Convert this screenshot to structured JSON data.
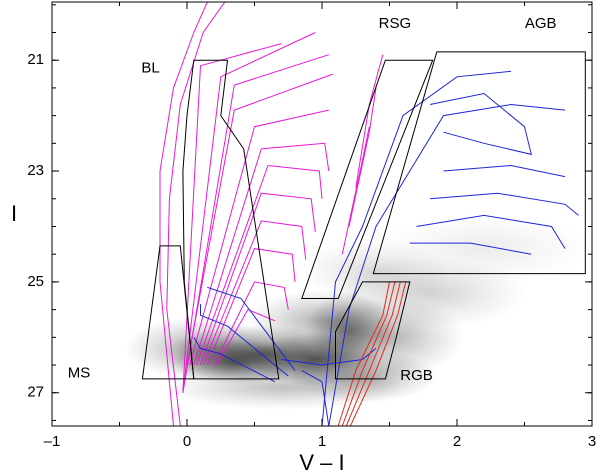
{
  "chart_data": {
    "type": "scatter",
    "title": "",
    "xlabel": "V – I",
    "ylabel": "I",
    "xlim": [
      -1,
      3
    ],
    "ylim": [
      27.6,
      19.95
    ],
    "y_inverted": true,
    "grid": false,
    "x_ticks": [
      -1,
      0,
      1,
      2,
      3
    ],
    "x_tick_labels": [
      "–1",
      "0",
      "1",
      "2",
      "3"
    ],
    "y_ticks": [
      21,
      23,
      25,
      27
    ],
    "y_tick_labels": [
      "21",
      "23",
      "25",
      "27"
    ],
    "density": {
      "description": "grey-scale stellar density (Hess diagram)",
      "color": "#000000",
      "blobs": [
        {
          "x": 0.55,
          "y": 26.3,
          "sx": 0.45,
          "sy": 0.32,
          "a": 0.55
        },
        {
          "x": 0.95,
          "y": 26.4,
          "sx": 0.3,
          "sy": 0.3,
          "a": 0.6
        },
        {
          "x": 0.35,
          "y": 26.45,
          "sx": 0.3,
          "sy": 0.25,
          "a": 0.5
        },
        {
          "x": 1.2,
          "y": 25.9,
          "sx": 0.2,
          "sy": 0.45,
          "a": 0.45
        },
        {
          "x": 1.0,
          "y": 25.7,
          "sx": 0.35,
          "sy": 0.35,
          "a": 0.3
        },
        {
          "x": 0.1,
          "y": 26.2,
          "sx": 0.35,
          "sy": 0.35,
          "a": 0.35
        },
        {
          "x": 1.5,
          "y": 26.0,
          "sx": 0.35,
          "sy": 0.45,
          "a": 0.3
        },
        {
          "x": 1.8,
          "y": 25.2,
          "sx": 0.45,
          "sy": 0.4,
          "a": 0.18
        },
        {
          "x": 1.4,
          "y": 24.8,
          "sx": 0.35,
          "sy": 0.35,
          "a": 0.14
        },
        {
          "x": 2.2,
          "y": 24.4,
          "sx": 0.5,
          "sy": 0.4,
          "a": 0.08
        },
        {
          "x": 0.7,
          "y": 26.9,
          "sx": 0.55,
          "sy": 0.25,
          "a": 0.25
        },
        {
          "x": 1.3,
          "y": 26.7,
          "sx": 0.35,
          "sy": 0.3,
          "a": 0.35
        }
      ]
    },
    "regions": [
      {
        "name": "BL",
        "label_x": -0.27,
        "label_y": 21.15,
        "polygon": [
          [
            0.05,
            21.0
          ],
          [
            0.3,
            21.0
          ],
          [
            0.25,
            22.0
          ],
          [
            0.42,
            22.6
          ],
          [
            0.68,
            26.75
          ],
          [
            0.05,
            26.75
          ],
          [
            -0.02,
            25.0
          ],
          [
            -0.03,
            23.0
          ],
          [
            0.0,
            22.0
          ]
        ]
      },
      {
        "name": "MS",
        "label_x": -0.8,
        "label_y": 26.65,
        "polygon": [
          [
            -0.2,
            24.35
          ],
          [
            -0.05,
            24.35
          ],
          [
            0.05,
            26.75
          ],
          [
            -0.33,
            26.75
          ],
          [
            -0.2,
            24.35
          ]
        ]
      },
      {
        "name": "RSG",
        "label_x": 1.54,
        "label_y": 20.35,
        "polygon": [
          [
            0.85,
            25.3
          ],
          [
            1.12,
            25.3
          ],
          [
            1.82,
            21.0
          ],
          [
            1.47,
            21.0
          ],
          [
            0.85,
            25.3
          ]
        ]
      },
      {
        "name": "AGB",
        "label_x": 2.62,
        "label_y": 20.35,
        "polygon": [
          [
            1.85,
            20.85
          ],
          [
            2.95,
            20.85
          ],
          [
            2.95,
            24.85
          ],
          [
            1.38,
            24.85
          ],
          [
            1.85,
            20.85
          ]
        ]
      },
      {
        "name": "RGB",
        "label_x": 1.7,
        "label_y": 26.7,
        "polygon": [
          [
            1.1,
            26.75
          ],
          [
            1.1,
            25.9
          ],
          [
            1.3,
            25.0
          ],
          [
            1.65,
            25.0
          ],
          [
            1.55,
            26.0
          ],
          [
            1.47,
            26.75
          ],
          [
            1.1,
            26.75
          ]
        ]
      }
    ],
    "series": [
      {
        "color": "#e81ad6",
        "points": [
          [
            -0.1,
            27.6
          ],
          [
            -0.2,
            25.0
          ],
          [
            -0.2,
            23.0
          ],
          [
            -0.1,
            21.5
          ],
          [
            0.05,
            20.5
          ],
          [
            0.15,
            19.95
          ]
        ]
      },
      {
        "color": "#e81ad6",
        "points": [
          [
            -0.05,
            27.6
          ],
          [
            -0.15,
            25.5
          ],
          [
            -0.13,
            23.5
          ],
          [
            -0.05,
            21.8
          ],
          [
            0.12,
            20.5
          ],
          [
            0.28,
            19.95
          ]
        ]
      },
      {
        "color": "#e81ad6",
        "points": [
          [
            -0.03,
            27.0
          ],
          [
            0.1,
            21.1
          ],
          [
            0.7,
            20.7
          ]
        ]
      },
      {
        "color": "#e81ad6",
        "points": [
          [
            -0.03,
            27.0
          ],
          [
            0.25,
            21.3
          ],
          [
            0.95,
            20.5
          ]
        ]
      },
      {
        "color": "#e81ad6",
        "points": [
          [
            -0.03,
            27.0
          ],
          [
            0.35,
            21.45
          ],
          [
            1.05,
            20.9
          ]
        ]
      },
      {
        "color": "#e81ad6",
        "points": [
          [
            0.0,
            26.5
          ],
          [
            0.35,
            21.9
          ],
          [
            1.08,
            21.25
          ]
        ]
      },
      {
        "color": "#e81ad6",
        "points": [
          [
            0.02,
            26.5
          ],
          [
            0.5,
            22.2
          ],
          [
            1.05,
            21.9
          ]
        ]
      },
      {
        "color": "#e81ad6",
        "points": [
          [
            0.05,
            26.5
          ],
          [
            0.55,
            22.6
          ],
          [
            1.02,
            22.5
          ],
          [
            1.05,
            23.0
          ]
        ]
      },
      {
        "color": "#e81ad6",
        "points": [
          [
            0.07,
            26.5
          ],
          [
            0.6,
            22.9
          ],
          [
            0.98,
            23.0
          ],
          [
            1.0,
            23.5
          ]
        ]
      },
      {
        "color": "#e81ad6",
        "points": [
          [
            0.1,
            26.5
          ],
          [
            0.55,
            23.4
          ],
          [
            0.92,
            23.5
          ],
          [
            0.95,
            24.1
          ]
        ]
      },
      {
        "color": "#e81ad6",
        "points": [
          [
            0.12,
            26.5
          ],
          [
            0.55,
            23.9
          ],
          [
            0.85,
            24.0
          ],
          [
            0.88,
            24.6
          ]
        ]
      },
      {
        "color": "#e81ad6",
        "points": [
          [
            0.15,
            26.5
          ],
          [
            0.5,
            24.4
          ],
          [
            0.78,
            24.5
          ],
          [
            0.8,
            25.0
          ]
        ]
      },
      {
        "color": "#e81ad6",
        "points": [
          [
            0.2,
            26.5
          ],
          [
            0.5,
            25.0
          ],
          [
            0.72,
            25.1
          ],
          [
            0.75,
            25.5
          ]
        ]
      },
      {
        "color": "#e81ad6",
        "points": [
          [
            0.22,
            26.5
          ],
          [
            0.45,
            25.5
          ],
          [
            0.65,
            25.7
          ]
        ]
      },
      {
        "color": "#e81ad6",
        "points": [
          [
            1.25,
            23.3
          ],
          [
            1.35,
            21.8
          ],
          [
            1.45,
            20.9
          ]
        ]
      },
      {
        "color": "#e81ad6",
        "points": [
          [
            1.2,
            24.0
          ],
          [
            1.35,
            22.3
          ],
          [
            1.4,
            21.5
          ]
        ]
      },
      {
        "color": "#e81ad6",
        "points": [
          [
            1.15,
            24.5
          ],
          [
            1.3,
            22.8
          ],
          [
            1.35,
            22.2
          ]
        ]
      },
      {
        "color": "#1c27d8",
        "points": [
          [
            1.0,
            27.6
          ],
          [
            1.1,
            25.0
          ],
          [
            1.3,
            24.0
          ],
          [
            1.6,
            22.0
          ],
          [
            2.0,
            21.3
          ],
          [
            2.4,
            21.2
          ]
        ]
      },
      {
        "color": "#1c27d8",
        "points": [
          [
            1.05,
            27.6
          ],
          [
            1.2,
            25.5
          ],
          [
            1.4,
            24.0
          ],
          [
            1.9,
            22.0
          ],
          [
            2.4,
            21.8
          ],
          [
            2.8,
            21.9
          ]
        ]
      },
      {
        "color": "#1c27d8",
        "points": [
          [
            1.8,
            21.8
          ],
          [
            2.2,
            21.6
          ],
          [
            2.5,
            22.2
          ],
          [
            2.55,
            22.7
          ],
          [
            2.2,
            22.5
          ],
          [
            1.9,
            22.3
          ]
        ]
      },
      {
        "color": "#1c27d8",
        "points": [
          [
            1.9,
            23.0
          ],
          [
            2.4,
            22.9
          ],
          [
            2.8,
            23.1
          ]
        ]
      },
      {
        "color": "#1c27d8",
        "points": [
          [
            1.8,
            23.5
          ],
          [
            2.3,
            23.4
          ],
          [
            2.8,
            23.6
          ],
          [
            2.9,
            23.8
          ]
        ]
      },
      {
        "color": "#1c27d8",
        "points": [
          [
            1.7,
            24.0
          ],
          [
            2.2,
            23.8
          ],
          [
            2.7,
            24.0
          ],
          [
            2.8,
            24.4
          ]
        ]
      },
      {
        "color": "#1c27d8",
        "points": [
          [
            1.65,
            24.3
          ],
          [
            2.1,
            24.3
          ],
          [
            2.55,
            24.5
          ]
        ]
      },
      {
        "color": "#1c27d8",
        "points": [
          [
            0.65,
            26.8
          ],
          [
            0.25,
            26.3
          ],
          [
            0.1,
            26.2
          ],
          [
            0.05,
            26.0
          ]
        ]
      },
      {
        "color": "#1c27d8",
        "points": [
          [
            0.75,
            26.7
          ],
          [
            0.3,
            25.8
          ],
          [
            0.1,
            25.6
          ],
          [
            0.1,
            25.4
          ]
        ]
      },
      {
        "color": "#1c27d8",
        "points": [
          [
            0.8,
            26.6
          ],
          [
            0.4,
            25.3
          ],
          [
            0.15,
            25.1
          ]
        ]
      },
      {
        "color": "#1c27d8",
        "points": [
          [
            0.85,
            26.6
          ],
          [
            1.0,
            26.8
          ],
          [
            1.05,
            27.6
          ]
        ]
      },
      {
        "color": "#1c27d8",
        "points": [
          [
            0.7,
            26.4
          ],
          [
            1.0,
            26.5
          ],
          [
            1.3,
            26.4
          ],
          [
            1.4,
            26.2
          ]
        ]
      },
      {
        "color": "#e3291b",
        "points": [
          [
            1.12,
            27.6
          ],
          [
            1.25,
            26.6
          ],
          [
            1.45,
            25.6
          ],
          [
            1.5,
            25.0
          ]
        ]
      },
      {
        "color": "#e3291b",
        "points": [
          [
            1.15,
            27.6
          ],
          [
            1.3,
            26.6
          ],
          [
            1.48,
            25.6
          ],
          [
            1.54,
            25.0
          ]
        ]
      },
      {
        "color": "#e3291b",
        "points": [
          [
            1.18,
            27.6
          ],
          [
            1.35,
            26.6
          ],
          [
            1.52,
            25.6
          ],
          [
            1.58,
            25.0
          ]
        ]
      },
      {
        "color": "#e3291b",
        "points": [
          [
            1.21,
            27.6
          ],
          [
            1.4,
            26.6
          ],
          [
            1.56,
            25.6
          ],
          [
            1.62,
            25.0
          ]
        ]
      }
    ]
  }
}
